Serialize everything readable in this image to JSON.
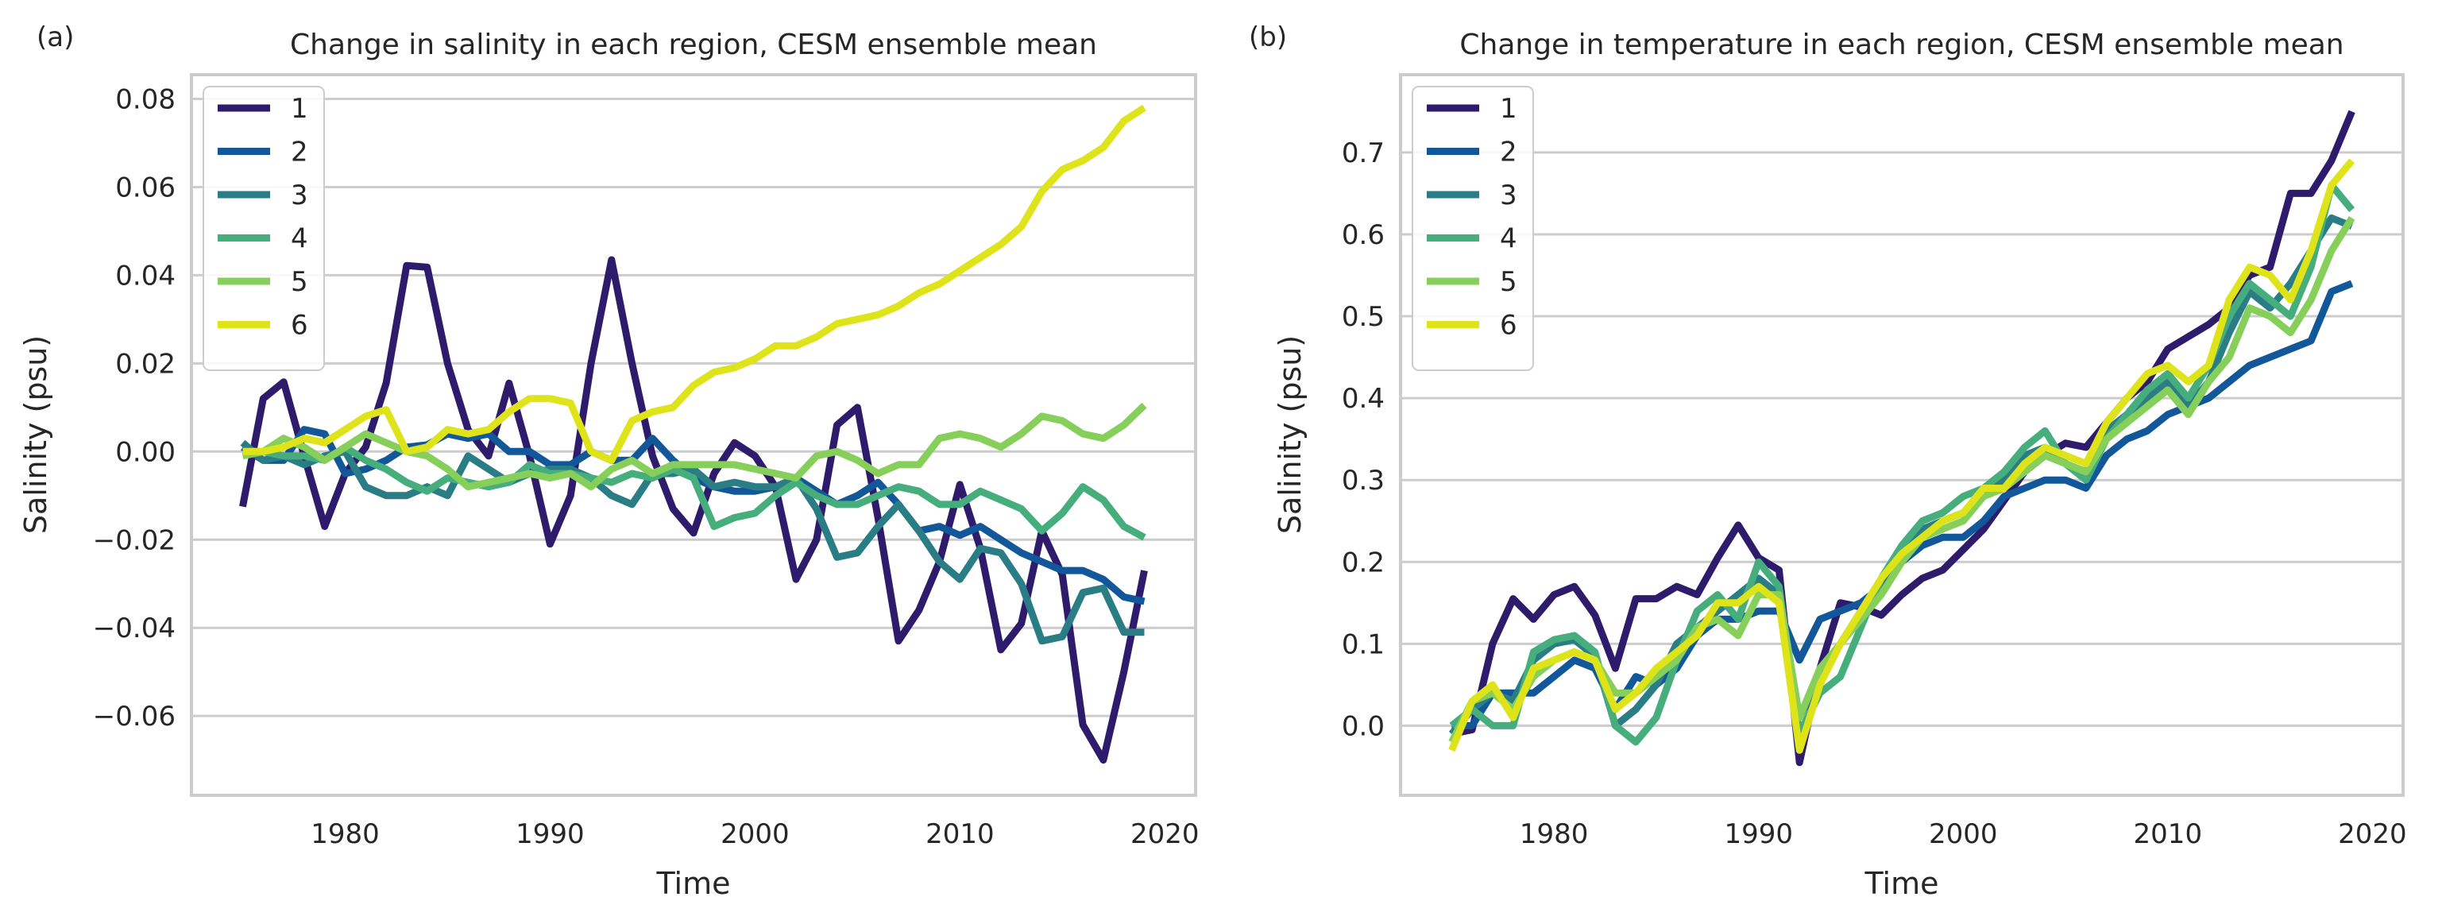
{
  "panels": [
    {
      "label": "(a)"
    },
    {
      "label": "(b)"
    }
  ],
  "colors": {
    "series": [
      "#2e1b6b",
      "#11579a",
      "#2a7d85",
      "#46ad7d",
      "#86cf5a",
      "#dee31a"
    ],
    "grid": "#cccccc",
    "frame": "#cccccc"
  },
  "chart_data": [
    {
      "type": "line",
      "title": "Change in salinity in each region, CESM ensemble mean",
      "xlabel": "Time",
      "ylabel": "Salinity (psu)",
      "xlim": [
        1972.5,
        2021.5
      ],
      "ylim": [
        -0.078,
        0.0855
      ],
      "xticks": [
        1980,
        1990,
        2000,
        2010,
        2020
      ],
      "yticks": [
        -0.06,
        -0.04,
        -0.02,
        0.0,
        0.02,
        0.04,
        0.06,
        0.08
      ],
      "ytick_labels": [
        "−0.06",
        "−0.04",
        "−0.02",
        "0.00",
        "0.02",
        "0.04",
        "0.06",
        "0.08"
      ],
      "grid": "horizontal",
      "legend_position": "top-left",
      "x": [
        1975,
        1976,
        1977,
        1978,
        1979,
        1980,
        1981,
        1982,
        1983,
        1984,
        1985,
        1986,
        1987,
        1988,
        1989,
        1990,
        1991,
        1992,
        1993,
        1994,
        1995,
        1996,
        1997,
        1998,
        1999,
        2000,
        2001,
        2002,
        2003,
        2004,
        2005,
        2006,
        2007,
        2008,
        2009,
        2010,
        2011,
        2012,
        2013,
        2014,
        2015,
        2016,
        2017,
        2018,
        2019
      ],
      "series": [
        {
          "name": "1",
          "values": [
            -0.0125,
            0.012,
            0.0158,
            -0.001,
            -0.017,
            -0.005,
            0.001,
            0.0155,
            0.0422,
            0.0418,
            0.02,
            0.005,
            -0.001,
            0.0155,
            -0.001,
            -0.021,
            -0.01,
            0.02,
            0.0435,
            0.02,
            -0.001,
            -0.013,
            -0.0185,
            -0.005,
            0.002,
            -0.001,
            -0.008,
            -0.029,
            -0.02,
            0.006,
            0.01,
            -0.015,
            -0.043,
            -0.036,
            -0.025,
            -0.0075,
            -0.022,
            -0.045,
            -0.039,
            -0.018,
            -0.028,
            -0.062,
            -0.07,
            -0.05,
            -0.027
          ]
        },
        {
          "name": "2",
          "values": [
            0.001,
            -0.002,
            -0.002,
            0.005,
            0.004,
            -0.005,
            -0.004,
            -0.002,
            0.001,
            0.0015,
            0.004,
            0.003,
            0.004,
            0.0,
            0.0,
            -0.003,
            -0.003,
            0.0,
            -0.002,
            -0.002,
            0.003,
            -0.002,
            -0.006,
            -0.008,
            -0.009,
            -0.009,
            -0.008,
            -0.006,
            -0.009,
            -0.012,
            -0.01,
            -0.007,
            -0.012,
            -0.018,
            -0.017,
            -0.019,
            -0.017,
            -0.02,
            -0.023,
            -0.025,
            -0.027,
            -0.027,
            -0.029,
            -0.033,
            -0.034
          ]
        },
        {
          "name": "3",
          "values": [
            0.002,
            -0.002,
            -0.001,
            -0.003,
            -0.001,
            0.0,
            -0.008,
            -0.01,
            -0.01,
            -0.008,
            -0.01,
            -0.001,
            -0.004,
            -0.007,
            -0.005,
            -0.004,
            -0.004,
            -0.006,
            -0.01,
            -0.012,
            -0.005,
            -0.005,
            -0.004,
            -0.008,
            -0.007,
            -0.008,
            -0.008,
            -0.006,
            -0.013,
            -0.024,
            -0.023,
            -0.017,
            -0.012,
            -0.018,
            -0.025,
            -0.029,
            -0.022,
            -0.023,
            -0.03,
            -0.043,
            -0.042,
            -0.032,
            -0.031,
            -0.041,
            -0.041
          ]
        },
        {
          "name": "4",
          "values": [
            0.0,
            0.0,
            -0.001,
            -0.001,
            -0.002,
            0.001,
            -0.002,
            -0.004,
            -0.007,
            -0.009,
            -0.006,
            -0.007,
            -0.008,
            -0.007,
            -0.003,
            -0.005,
            -0.005,
            -0.006,
            -0.007,
            -0.005,
            -0.006,
            -0.004,
            -0.006,
            -0.017,
            -0.015,
            -0.014,
            -0.01,
            -0.007,
            -0.01,
            -0.012,
            -0.012,
            -0.01,
            -0.008,
            -0.009,
            -0.012,
            -0.012,
            -0.009,
            -0.011,
            -0.013,
            -0.018,
            -0.014,
            -0.008,
            -0.011,
            -0.017,
            -0.0195
          ]
        },
        {
          "name": "5",
          "values": [
            -0.001,
            0.0,
            0.003,
            0.001,
            -0.002,
            0.001,
            0.004,
            0.002,
            0.0,
            -0.001,
            -0.004,
            -0.008,
            -0.007,
            -0.006,
            -0.005,
            -0.006,
            -0.005,
            -0.008,
            -0.004,
            -0.002,
            -0.005,
            -0.003,
            -0.003,
            -0.003,
            -0.003,
            -0.004,
            -0.005,
            -0.006,
            -0.001,
            0.0,
            -0.002,
            -0.005,
            -0.003,
            -0.003,
            0.003,
            0.004,
            0.003,
            0.001,
            0.004,
            0.008,
            0.007,
            0.004,
            0.003,
            0.006,
            0.0105
          ]
        },
        {
          "name": "6",
          "values": [
            0.0,
            0.0,
            0.001,
            0.003,
            0.002,
            0.005,
            0.008,
            0.0095,
            0.0,
            0.001,
            0.005,
            0.004,
            0.005,
            0.009,
            0.012,
            0.012,
            0.011,
            0.0,
            -0.002,
            0.007,
            0.009,
            0.01,
            0.015,
            0.018,
            0.019,
            0.021,
            0.024,
            0.024,
            0.026,
            0.029,
            0.03,
            0.031,
            0.033,
            0.036,
            0.038,
            0.041,
            0.044,
            0.047,
            0.051,
            0.059,
            0.064,
            0.066,
            0.069,
            0.075,
            0.078
          ]
        }
      ]
    },
    {
      "type": "line",
      "title": "Change in temperature in each region, CESM ensemble mean",
      "xlabel": "Time",
      "ylabel": "Salinity (psu)",
      "xlim": [
        1972.5,
        2021.5
      ],
      "ylim": [
        -0.085,
        0.795
      ],
      "xticks": [
        1980,
        1990,
        2000,
        2010,
        2020
      ],
      "yticks": [
        0.0,
        0.1,
        0.2,
        0.3,
        0.4,
        0.5,
        0.6,
        0.7
      ],
      "ytick_labels": [
        "0.0",
        "0.1",
        "0.2",
        "0.3",
        "0.4",
        "0.5",
        "0.6",
        "0.7"
      ],
      "grid": "horizontal",
      "legend_position": "top-left",
      "x": [
        1975,
        1976,
        1977,
        1978,
        1979,
        1980,
        1981,
        1982,
        1983,
        1984,
        1985,
        1986,
        1987,
        1988,
        1989,
        1990,
        1991,
        1992,
        1993,
        1994,
        1995,
        1996,
        1997,
        1998,
        1999,
        2000,
        2001,
        2002,
        2003,
        2004,
        2005,
        2006,
        2007,
        2008,
        2009,
        2010,
        2011,
        2012,
        2013,
        2014,
        2015,
        2016,
        2017,
        2018,
        2019
      ],
      "series": [
        {
          "name": "1",
          "values": [
            -0.01,
            -0.005,
            0.1,
            0.155,
            0.13,
            0.16,
            0.17,
            0.135,
            0.07,
            0.155,
            0.155,
            0.17,
            0.16,
            0.205,
            0.245,
            0.205,
            0.19,
            -0.045,
            0.07,
            0.15,
            0.145,
            0.135,
            0.16,
            0.18,
            0.19,
            0.215,
            0.24,
            0.275,
            0.31,
            0.33,
            0.345,
            0.34,
            0.37,
            0.4,
            0.42,
            0.46,
            0.475,
            0.49,
            0.51,
            0.55,
            0.56,
            0.65,
            0.65,
            0.69,
            0.75
          ]
        },
        {
          "name": "2",
          "values": [
            0.0,
            0.0,
            0.04,
            0.04,
            0.04,
            0.06,
            0.08,
            0.07,
            0.02,
            0.06,
            0.05,
            0.07,
            0.11,
            0.13,
            0.13,
            0.14,
            0.14,
            0.08,
            0.13,
            0.14,
            0.15,
            0.17,
            0.2,
            0.22,
            0.23,
            0.23,
            0.25,
            0.28,
            0.29,
            0.3,
            0.3,
            0.29,
            0.33,
            0.35,
            0.36,
            0.38,
            0.39,
            0.4,
            0.42,
            0.44,
            0.45,
            0.46,
            0.47,
            0.53,
            0.54
          ]
        },
        {
          "name": "3",
          "values": [
            -0.01,
            0.02,
            0.04,
            0.03,
            0.08,
            0.1,
            0.105,
            0.085,
            0.0,
            0.02,
            0.05,
            0.1,
            0.12,
            0.14,
            0.16,
            0.18,
            0.16,
            0.01,
            0.06,
            0.1,
            0.14,
            0.17,
            0.21,
            0.24,
            0.25,
            0.26,
            0.28,
            0.3,
            0.33,
            0.34,
            0.32,
            0.31,
            0.36,
            0.38,
            0.4,
            0.42,
            0.39,
            0.42,
            0.48,
            0.53,
            0.51,
            0.54,
            0.58,
            0.62,
            0.61
          ]
        },
        {
          "name": "4",
          "values": [
            0.0,
            0.02,
            0.0,
            0.0,
            0.09,
            0.105,
            0.11,
            0.09,
            0.0,
            -0.02,
            0.01,
            0.08,
            0.14,
            0.16,
            0.13,
            0.2,
            0.17,
            -0.01,
            0.04,
            0.06,
            0.12,
            0.18,
            0.22,
            0.25,
            0.26,
            0.28,
            0.29,
            0.31,
            0.34,
            0.36,
            0.32,
            0.3,
            0.35,
            0.38,
            0.41,
            0.43,
            0.4,
            0.44,
            0.5,
            0.54,
            0.52,
            0.5,
            0.56,
            0.66,
            0.63
          ]
        },
        {
          "name": "5",
          "values": [
            -0.02,
            0.03,
            0.04,
            0.02,
            0.06,
            0.08,
            0.09,
            0.08,
            0.04,
            0.04,
            0.06,
            0.08,
            0.12,
            0.13,
            0.11,
            0.16,
            0.16,
            0.01,
            0.07,
            0.1,
            0.13,
            0.16,
            0.2,
            0.23,
            0.24,
            0.25,
            0.28,
            0.29,
            0.31,
            0.33,
            0.32,
            0.31,
            0.35,
            0.37,
            0.39,
            0.41,
            0.38,
            0.42,
            0.45,
            0.51,
            0.5,
            0.48,
            0.52,
            0.58,
            0.62
          ]
        },
        {
          "name": "6",
          "values": [
            -0.03,
            0.03,
            0.05,
            0.01,
            0.07,
            0.08,
            0.09,
            0.08,
            0.02,
            0.04,
            0.07,
            0.09,
            0.11,
            0.15,
            0.15,
            0.17,
            0.15,
            -0.03,
            0.05,
            0.1,
            0.14,
            0.18,
            0.21,
            0.23,
            0.25,
            0.26,
            0.29,
            0.29,
            0.32,
            0.34,
            0.33,
            0.32,
            0.37,
            0.4,
            0.43,
            0.44,
            0.42,
            0.44,
            0.52,
            0.56,
            0.55,
            0.52,
            0.58,
            0.66,
            0.69
          ]
        }
      ]
    }
  ]
}
